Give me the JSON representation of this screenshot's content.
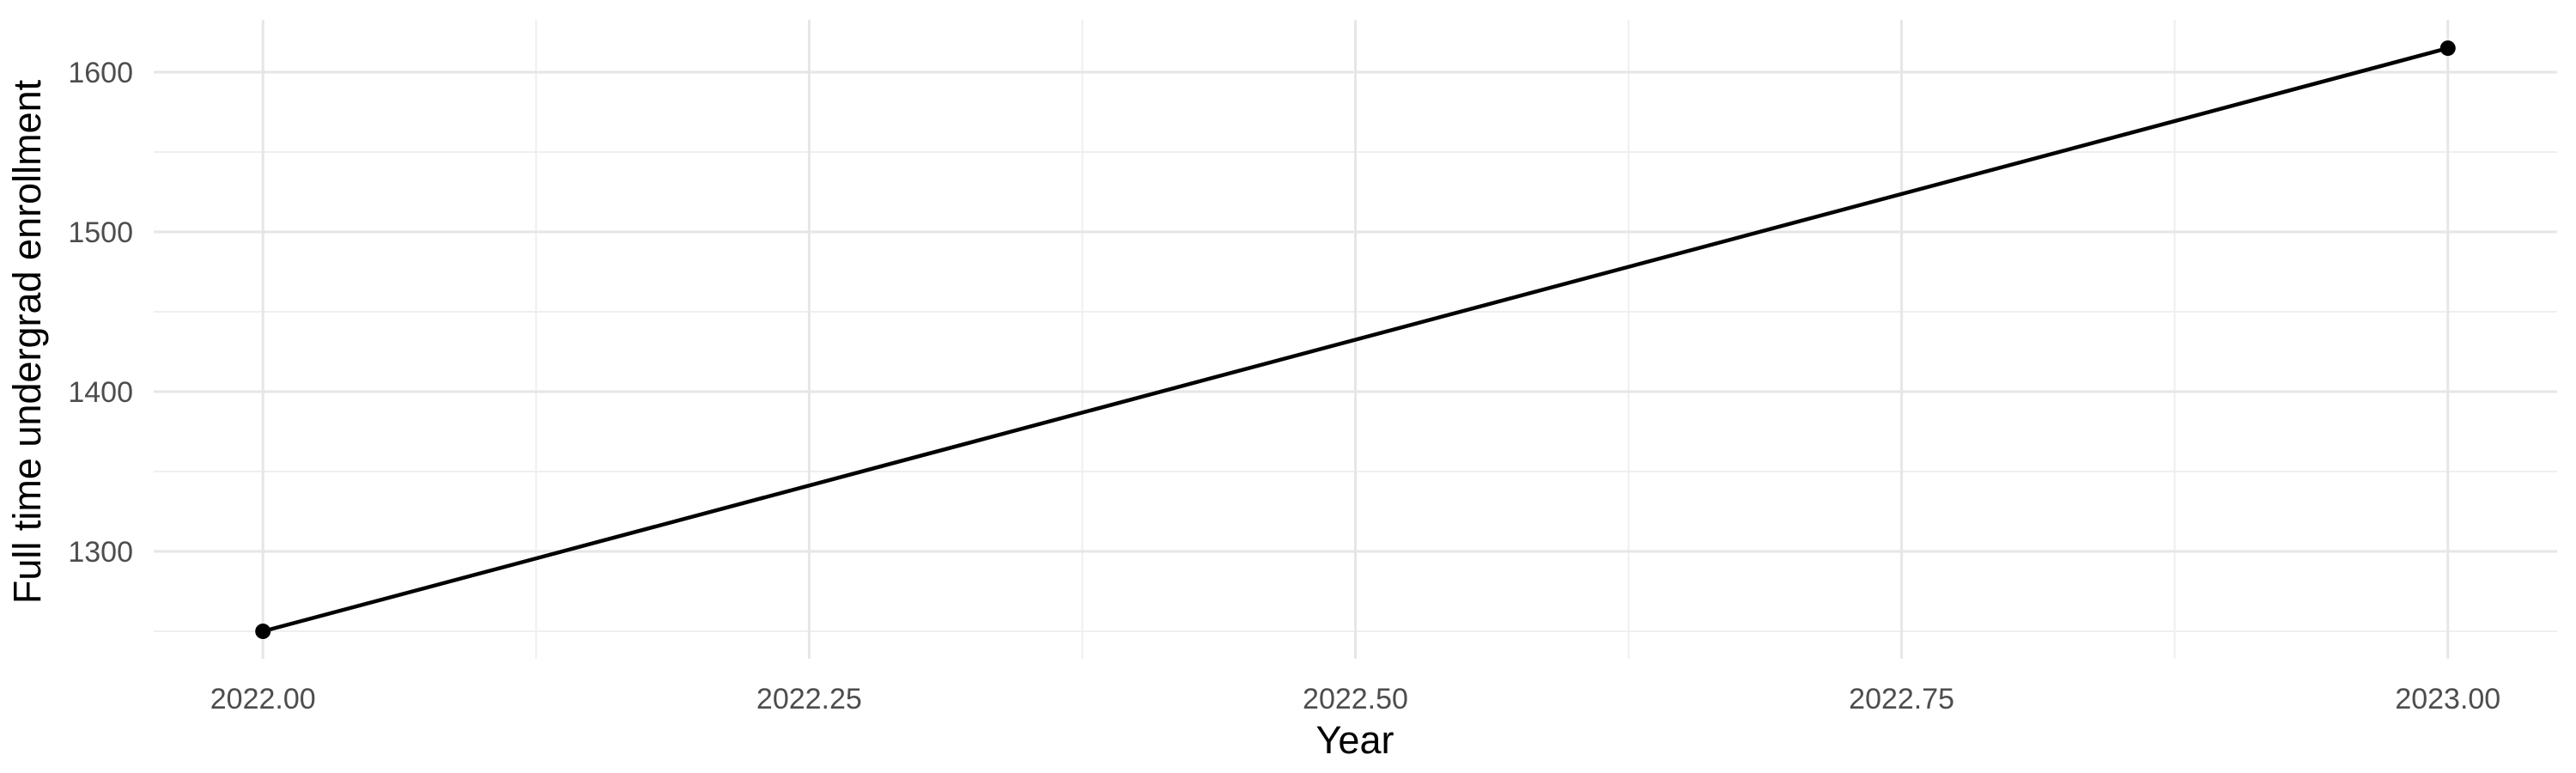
{
  "chart_data": {
    "type": "line",
    "title": "",
    "xlabel": "Year",
    "ylabel": "Full time undergrad enrollment",
    "x": [
      2022,
      2023
    ],
    "y": [
      1250,
      1615
    ],
    "points_shown": true,
    "xlim": [
      2021.95,
      2023.05
    ],
    "ylim": [
      1232.8,
      1632.8
    ],
    "x_major_ticks": [
      2022.0,
      2022.25,
      2022.5,
      2022.75,
      2023.0
    ],
    "x_tick_labels": [
      "2022.00",
      "2022.25",
      "2022.50",
      "2022.75",
      "2023.00"
    ],
    "x_minor_ticks": [
      2022.125,
      2022.375,
      2022.625,
      2022.875
    ],
    "y_major_ticks": [
      1300,
      1400,
      1500,
      1600
    ],
    "y_tick_labels": [
      "1300",
      "1400",
      "1500",
      "1600"
    ],
    "y_minor_ticks": [
      1250,
      1350,
      1450,
      1550
    ],
    "grid": true,
    "legend": false,
    "style": {
      "background_color": "#ffffff",
      "grid_major_color": "#e6e6e6",
      "grid_minor_color": "#efefef",
      "line_color": "#000000",
      "point_color": "#000000",
      "tick_label_color": "#4d4d4d",
      "axis_title_color": "#000000"
    }
  }
}
